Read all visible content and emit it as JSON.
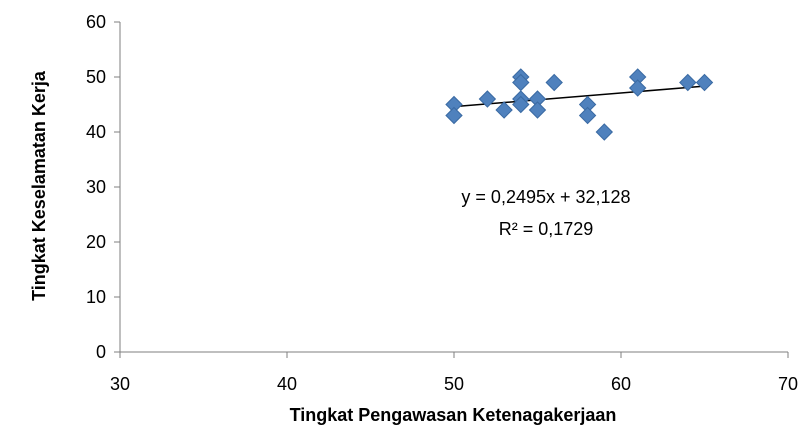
{
  "chart_data": {
    "type": "scatter",
    "xlabel": "Tingkat Pengawasan Ketenagakerjaan",
    "ylabel": "Tingkat  Keselamatan Kerja",
    "xlim": [
      30,
      70
    ],
    "ylim": [
      0,
      60
    ],
    "x_ticks": [
      "30",
      "40",
      "50",
      "60",
      "70"
    ],
    "y_ticks": [
      "0",
      "10",
      "20",
      "30",
      "40",
      "50",
      "60"
    ],
    "grid": false,
    "legend": "none",
    "marker": "diamond",
    "colors": {
      "points": "#4F81BD",
      "point_edge": "#3A6AA3",
      "trendline": "#000000",
      "axis": "#7F7F7F"
    },
    "series": [
      {
        "points": [
          {
            "x": 50,
            "y": 45
          },
          {
            "x": 50,
            "y": 43
          },
          {
            "x": 52,
            "y": 46
          },
          {
            "x": 53,
            "y": 44
          },
          {
            "x": 54,
            "y": 50
          },
          {
            "x": 54,
            "y": 49
          },
          {
            "x": 54,
            "y": 46
          },
          {
            "x": 54,
            "y": 45
          },
          {
            "x": 55,
            "y": 46
          },
          {
            "x": 55,
            "y": 44
          },
          {
            "x": 56,
            "y": 49
          },
          {
            "x": 58,
            "y": 45
          },
          {
            "x": 58,
            "y": 43
          },
          {
            "x": 59,
            "y": 40
          },
          {
            "x": 61,
            "y": 50
          },
          {
            "x": 61,
            "y": 48
          },
          {
            "x": 64,
            "y": 49
          },
          {
            "x": 65,
            "y": 49
          }
        ]
      }
    ],
    "trendline": {
      "type": "linear",
      "slope": 0.2495,
      "intercept": 32.128,
      "x_range": [
        50,
        65
      ],
      "equation_label": "y = 0,2495x + 32,128",
      "r2_label": "R² = 0,1729"
    }
  }
}
